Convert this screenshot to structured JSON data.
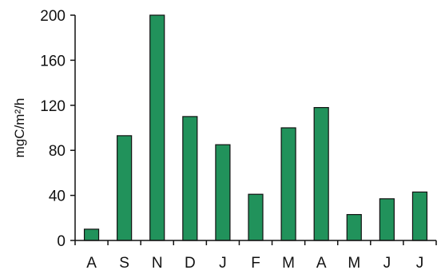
{
  "chart_data": {
    "type": "bar",
    "categories": [
      "A",
      "S",
      "N",
      "D",
      "J",
      "F",
      "M",
      "A",
      "M",
      "J",
      "J"
    ],
    "values": [
      10,
      93,
      200,
      110,
      85,
      41,
      100,
      118,
      23,
      37,
      43
    ],
    "title": "",
    "xlabel": "",
    "ylabel": "mgC/m²/h",
    "ylim": [
      0,
      200
    ],
    "yticks": [
      0,
      40,
      80,
      120,
      160,
      200
    ],
    "grid": false,
    "legend": "none",
    "bar_color": "#21925B",
    "bar_outline_color": "#111111"
  }
}
